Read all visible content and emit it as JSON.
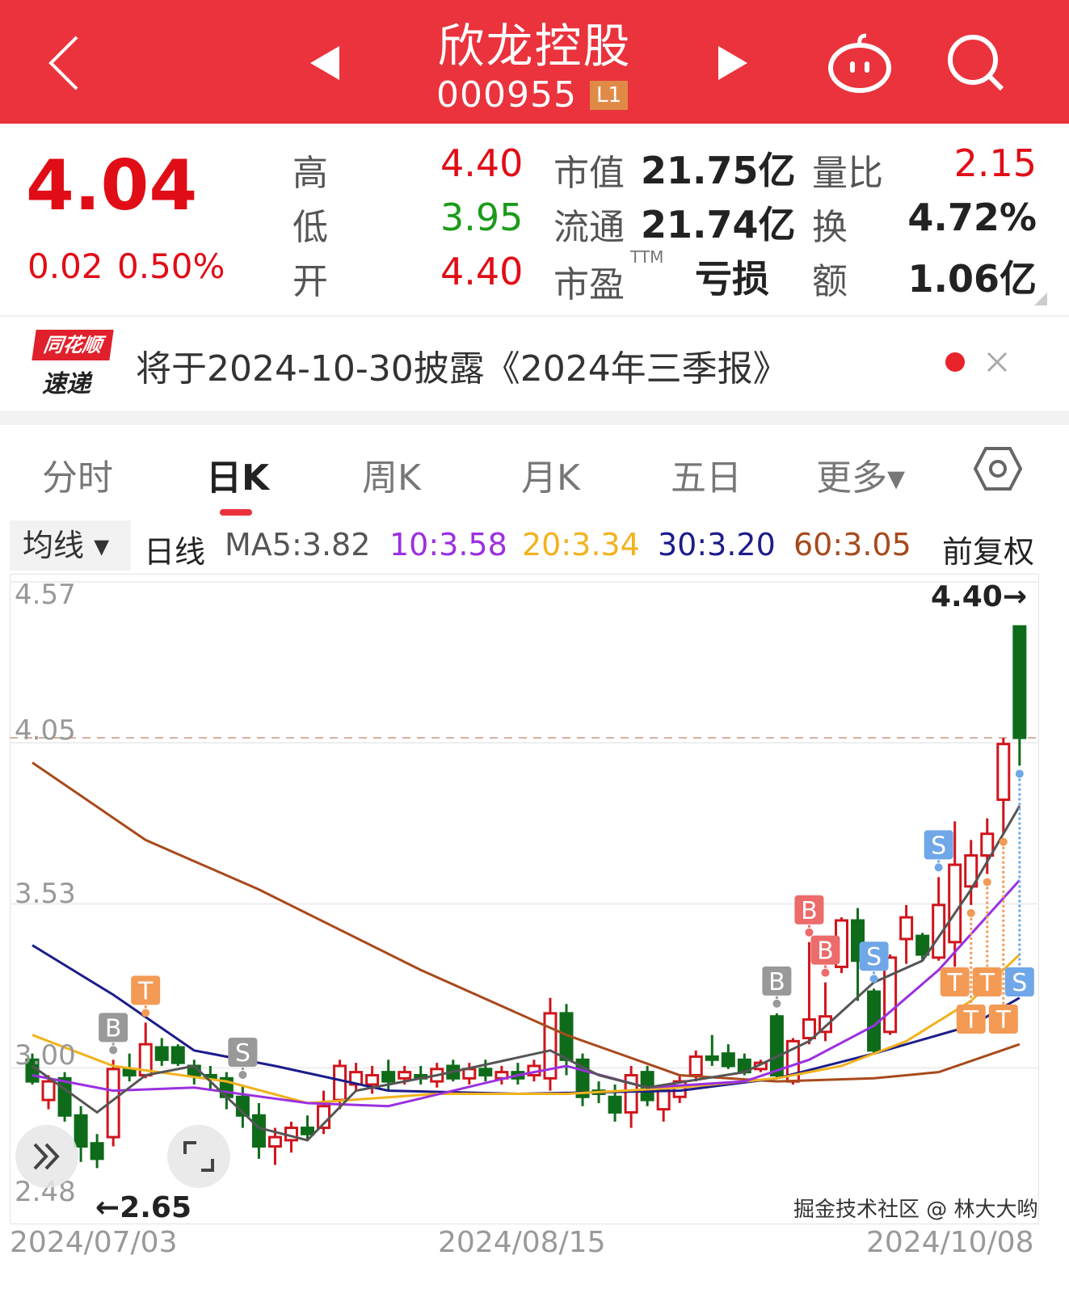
{
  "header": {
    "title": "欣龙控股",
    "code": "000955",
    "level_badge": "L1",
    "back_icon": "chevron-left-icon",
    "prev_icon": "triangle-left-icon",
    "next_icon": "triangle-right-icon",
    "robot_icon": "robot-icon",
    "search_icon": "search-icon"
  },
  "quote": {
    "price": "4.04",
    "change": "0.02",
    "change_pct": "0.50%",
    "high_label": "高",
    "high": "4.40",
    "low_label": "低",
    "low": "3.95",
    "open_label": "开",
    "open": "4.40",
    "mcap_label": "市值",
    "mcap": "21.75亿",
    "float_label": "流通",
    "float": "21.74亿",
    "pe_label": "市盈",
    "pe_sup": "TTM",
    "pe": "亏损",
    "vr_label": "量比",
    "vr": "2.15",
    "turnover_label": "换",
    "turnover": "4.72%",
    "amount_label": "额",
    "amount": "1.06亿"
  },
  "notice": {
    "logo_top": "同花顺",
    "logo_bottom": "速递",
    "text": "将于2024-10-30披露《2024年三季报》"
  },
  "tabs": [
    {
      "label": "分时"
    },
    {
      "label": "日K",
      "active": true
    },
    {
      "label": "周K"
    },
    {
      "label": "月K"
    },
    {
      "label": "五日"
    },
    {
      "label": "更多▾"
    }
  ],
  "ma_legend": {
    "selector": "均线 ▾",
    "period": "日线",
    "ma5": "MA5:3.82",
    "ma10": "10:3.58",
    "ma20": "20:3.34",
    "ma30": "30:3.20",
    "ma60": "60:3.05",
    "adjust": "前复权"
  },
  "colors": {
    "header": "#ea333d",
    "up": "#d0141c",
    "down": "#0e6b1a",
    "ma5": "#555555",
    "ma10": "#9b30e0",
    "ma20": "#f2b21c",
    "ma30": "#1c1c8a",
    "ma60": "#a84a1c"
  },
  "chart_data": {
    "type": "candlestick",
    "ylim": [
      2.48,
      4.57
    ],
    "y_ticks": [
      "4.57",
      "4.05",
      "3.53",
      "3.00",
      "2.48"
    ],
    "x_ticks": [
      {
        "idx": 0,
        "label": "2024/07/03"
      },
      {
        "idx": 30,
        "label": "2024/08/15"
      },
      {
        "idx": 61,
        "label": "2024/10/08"
      }
    ],
    "current_price_line": 4.04,
    "max_annotation": "4.40→",
    "min_annotation": "←2.65",
    "ohlc": [
      [
        3.0,
        3.02,
        2.92,
        2.93
      ],
      [
        2.87,
        2.95,
        2.84,
        2.93
      ],
      [
        2.94,
        2.96,
        2.8,
        2.82
      ],
      [
        2.82,
        2.85,
        2.67,
        2.72
      ],
      [
        2.73,
        2.76,
        2.65,
        2.68
      ],
      [
        2.75,
        3.0,
        2.72,
        2.97
      ],
      [
        2.97,
        3.02,
        2.93,
        2.95
      ],
      [
        2.95,
        3.12,
        2.94,
        3.05
      ],
      [
        3.04,
        3.07,
        2.98,
        3.0
      ],
      [
        3.04,
        3.05,
        2.98,
        2.99
      ],
      [
        2.98,
        3.0,
        2.92,
        2.95
      ],
      [
        2.95,
        2.98,
        2.9,
        2.94
      ],
      [
        2.94,
        2.96,
        2.84,
        2.88
      ],
      [
        2.88,
        2.92,
        2.78,
        2.82
      ],
      [
        2.82,
        2.86,
        2.68,
        2.72
      ],
      [
        2.72,
        2.78,
        2.66,
        2.75
      ],
      [
        2.74,
        2.8,
        2.7,
        2.78
      ],
      [
        2.78,
        2.82,
        2.74,
        2.76
      ],
      [
        2.78,
        2.9,
        2.76,
        2.85
      ],
      [
        2.87,
        3.0,
        2.84,
        2.98
      ],
      [
        2.92,
        2.99,
        2.9,
        2.96
      ],
      [
        2.92,
        2.98,
        2.89,
        2.95
      ],
      [
        2.96,
        3.0,
        2.9,
        2.93
      ],
      [
        2.94,
        2.98,
        2.92,
        2.96
      ],
      [
        2.95,
        2.98,
        2.92,
        2.94
      ],
      [
        2.93,
        2.99,
        2.91,
        2.97
      ],
      [
        2.98,
        3.0,
        2.93,
        2.94
      ],
      [
        2.94,
        2.99,
        2.92,
        2.97
      ],
      [
        2.97,
        3.0,
        2.93,
        2.95
      ],
      [
        2.94,
        2.98,
        2.92,
        2.96
      ],
      [
        2.96,
        2.99,
        2.92,
        2.94
      ],
      [
        2.95,
        3.0,
        2.93,
        2.98
      ],
      [
        2.94,
        3.2,
        2.9,
        3.15
      ],
      [
        3.15,
        3.18,
        2.95,
        3.0
      ],
      [
        3.0,
        3.02,
        2.85,
        2.88
      ],
      [
        2.9,
        2.93,
        2.86,
        2.89
      ],
      [
        2.88,
        2.92,
        2.8,
        2.83
      ],
      [
        2.83,
        2.98,
        2.78,
        2.95
      ],
      [
        2.96,
        2.98,
        2.85,
        2.87
      ],
      [
        2.84,
        2.92,
        2.8,
        2.9
      ],
      [
        2.88,
        2.95,
        2.86,
        2.93
      ],
      [
        2.95,
        3.03,
        2.93,
        3.01
      ],
      [
        3.01,
        3.08,
        2.98,
        3.0
      ],
      [
        3.02,
        3.05,
        2.97,
        2.98
      ],
      [
        3.0,
        3.02,
        2.95,
        2.96
      ],
      [
        2.97,
        3.0,
        2.96,
        2.99
      ],
      [
        3.14,
        3.15,
        2.94,
        2.95
      ],
      [
        2.93,
        3.07,
        2.92,
        3.06
      ],
      [
        3.07,
        3.38,
        3.05,
        3.13
      ],
      [
        3.09,
        3.25,
        3.06,
        3.14
      ],
      [
        3.3,
        3.46,
        3.28,
        3.45
      ],
      [
        3.45,
        3.49,
        3.19,
        3.32
      ],
      [
        3.22,
        3.23,
        3.02,
        3.03
      ],
      [
        3.09,
        3.34,
        3.08,
        3.33
      ],
      [
        3.39,
        3.5,
        3.31,
        3.46
      ],
      [
        3.4,
        3.41,
        3.32,
        3.34
      ],
      [
        3.33,
        3.59,
        3.32,
        3.5
      ],
      [
        3.38,
        3.77,
        3.3,
        3.63
      ],
      [
        3.56,
        3.71,
        3.5,
        3.66
      ],
      [
        3.66,
        3.78,
        3.6,
        3.73
      ],
      [
        3.84,
        4.04,
        3.73,
        4.02
      ],
      [
        4.4,
        4.4,
        3.95,
        4.04
      ]
    ],
    "ma_keyframes": {
      "ma60": [
        [
          0,
          3.96
        ],
        [
          7,
          3.71
        ],
        [
          14,
          3.55
        ],
        [
          24,
          3.29
        ],
        [
          33,
          3.08
        ],
        [
          40,
          2.95
        ],
        [
          46,
          2.93
        ],
        [
          52,
          2.94
        ],
        [
          56,
          2.96
        ],
        [
          61,
          3.05
        ]
      ],
      "ma30": [
        [
          0,
          3.37
        ],
        [
          5,
          3.21
        ],
        [
          10,
          3.03
        ],
        [
          15,
          2.98
        ],
        [
          22,
          2.9
        ],
        [
          30,
          2.89
        ],
        [
          40,
          2.9
        ],
        [
          46,
          2.94
        ],
        [
          52,
          3.02
        ],
        [
          58,
          3.11
        ],
        [
          61,
          3.2
        ]
      ],
      "ma20": [
        [
          0,
          3.08
        ],
        [
          5,
          2.98
        ],
        [
          12,
          2.93
        ],
        [
          17,
          2.86
        ],
        [
          25,
          2.89
        ],
        [
          33,
          2.89
        ],
        [
          40,
          2.91
        ],
        [
          46,
          2.94
        ],
        [
          50,
          2.98
        ],
        [
          54,
          3.06
        ],
        [
          58,
          3.19
        ],
        [
          61,
          3.34
        ]
      ],
      "ma10": [
        [
          0,
          2.95
        ],
        [
          5,
          2.9
        ],
        [
          10,
          2.91
        ],
        [
          17,
          2.86
        ],
        [
          22,
          2.85
        ],
        [
          30,
          2.95
        ],
        [
          33,
          2.98
        ],
        [
          38,
          2.91
        ],
        [
          44,
          2.93
        ],
        [
          48,
          3.0
        ],
        [
          52,
          3.11
        ],
        [
          56,
          3.29
        ],
        [
          61,
          3.58
        ]
      ],
      "ma5": [
        [
          0,
          2.98
        ],
        [
          4,
          2.83
        ],
        [
          7,
          2.95
        ],
        [
          10,
          2.98
        ],
        [
          14,
          2.78
        ],
        [
          17,
          2.74
        ],
        [
          20,
          2.9
        ],
        [
          25,
          2.95
        ],
        [
          32,
          3.03
        ],
        [
          35,
          2.95
        ],
        [
          38,
          2.91
        ],
        [
          44,
          2.96
        ],
        [
          48,
          3.06
        ],
        [
          52,
          3.25
        ],
        [
          55,
          3.32
        ],
        [
          58,
          3.55
        ],
        [
          61,
          3.82
        ]
      ]
    },
    "signals": [
      {
        "idx": 5,
        "type": "B",
        "color": "#999999"
      },
      {
        "idx": 7,
        "type": "T",
        "color": "#f39a55"
      },
      {
        "idx": 13,
        "type": "S",
        "color": "#999999"
      },
      {
        "idx": 46,
        "type": "B",
        "color": "#999999"
      },
      {
        "idx": 48,
        "type": "B",
        "color": "#ec6b6b"
      },
      {
        "idx": 49,
        "type": "B",
        "color": "#ec6b6b"
      },
      {
        "idx": 52,
        "type": "S",
        "color": "#6fa7e8"
      },
      {
        "idx": 56,
        "type": "S",
        "color": "#6fa7e8"
      },
      {
        "idx": 57,
        "type": "T",
        "color": "#f39a55"
      },
      {
        "idx": 58,
        "type": "T",
        "color": "#f39a55"
      },
      {
        "idx": 59,
        "type": "T",
        "color": "#f39a55"
      },
      {
        "idx": 60,
        "type": "T",
        "color": "#f39a55"
      },
      {
        "idx": 61,
        "type": "S",
        "color": "#6fa7e8"
      }
    ]
  },
  "watermark": "掘金技术社区 @ 林大大哟"
}
